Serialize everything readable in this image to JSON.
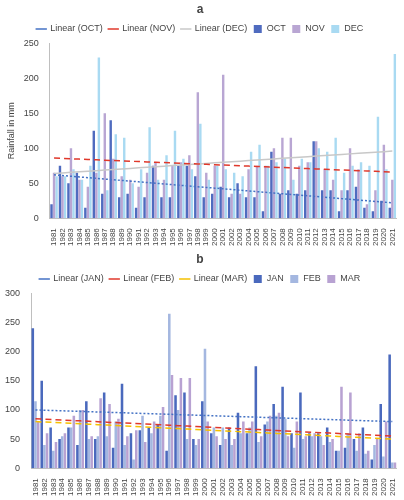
{
  "chart_data": [
    {
      "type": "bar",
      "title": "a",
      "y_label": "Rainfall in mm",
      "legend": "top",
      "grid": false,
      "categories": [
        "1981",
        "1982",
        "1983",
        "1984",
        "1985",
        "1986",
        "1987",
        "1988",
        "1989",
        "1990",
        "1991",
        "1992",
        "1993",
        "1994",
        "1995",
        "1996",
        "1997",
        "1998",
        "1999",
        "2000",
        "2001",
        "2002",
        "2003",
        "2004",
        "2005",
        "2006",
        "2007",
        "2008",
        "2009",
        "2010",
        "2011",
        "2012",
        "2013",
        "2014",
        "2015",
        "2016",
        "2017",
        "2018",
        "2019",
        "2020",
        "2021"
      ],
      "ylim": [
        0,
        250
      ],
      "yticks": [
        0,
        50,
        100,
        150,
        200,
        250
      ],
      "series": [
        {
          "name": "OCT",
          "type": "bar",
          "color": "#4f6bbf",
          "values": [
            20,
            75,
            50,
            65,
            15,
            125,
            35,
            140,
            30,
            35,
            15,
            30,
            75,
            30,
            30,
            75,
            75,
            60,
            30,
            35,
            45,
            30,
            50,
            30,
            30,
            10,
            95,
            35,
            40,
            35,
            40,
            110,
            40,
            40,
            10,
            40,
            45,
            15,
            10,
            25,
            15
          ]
        },
        {
          "name": "NOV",
          "type": "bar",
          "color": "#b9a6d3",
          "values": [
            65,
            60,
            100,
            55,
            45,
            65,
            150,
            85,
            60,
            55,
            45,
            65,
            80,
            55,
            75,
            80,
            90,
            180,
            65,
            75,
            205,
            35,
            35,
            70,
            75,
            75,
            100,
            115,
            115,
            75,
            80,
            110,
            70,
            55,
            40,
            100,
            70,
            20,
            40,
            105,
            55
          ]
        },
        {
          "name": "DEC",
          "type": "bar",
          "color": "#a9daf2",
          "values": [
            60,
            60,
            70,
            55,
            75,
            230,
            40,
            120,
            115,
            50,
            70,
            130,
            55,
            90,
            125,
            85,
            70,
            135,
            55,
            75,
            70,
            65,
            60,
            95,
            105,
            75,
            80,
            85,
            55,
            85,
            80,
            100,
            95,
            115,
            65,
            75,
            80,
            75,
            145,
            70,
            235
          ]
        },
        {
          "name": "Linear (OCT)",
          "type": "line",
          "line_style": "dotted",
          "color": "#4472c4",
          "values": [
            62,
            61,
            60,
            59,
            58,
            57,
            56,
            55,
            54,
            53,
            52,
            51,
            50,
            49,
            48,
            47,
            46,
            45,
            44,
            43,
            42,
            41,
            40,
            39,
            38,
            37,
            36,
            35,
            34,
            33,
            32,
            31,
            30,
            29,
            28,
            27,
            26,
            25,
            24,
            23,
            22
          ]
        },
        {
          "name": "Linear (NOV)",
          "type": "line",
          "line_style": "dashed",
          "color": "#e0382b",
          "values": [
            86,
            85.5,
            85,
            84.5,
            84,
            83.5,
            83,
            82.5,
            82,
            81.5,
            81,
            80.5,
            80,
            79.5,
            79,
            78.5,
            78,
            77.5,
            77,
            76.5,
            76,
            75.5,
            75,
            74.5,
            74,
            73.5,
            73,
            72.5,
            72,
            71.5,
            71,
            70.5,
            70,
            69.5,
            69,
            68.5,
            68,
            67.5,
            67,
            66.5,
            66
          ]
        },
        {
          "name": "Linear (DEC)",
          "type": "line",
          "line_style": "solid",
          "color": "#c8c8c8",
          "values": [
            64,
            64.8,
            65.6,
            66.4,
            67.2,
            68,
            68.8,
            69.6,
            70.4,
            71.2,
            72,
            72.8,
            73.6,
            74.4,
            75.2,
            76,
            76.8,
            77.6,
            78.4,
            79.2,
            80,
            80.8,
            81.6,
            82.4,
            83.2,
            84,
            84.8,
            85.6,
            86.4,
            87.2,
            88,
            88.8,
            89.6,
            90.4,
            91.2,
            92,
            92.8,
            93.6,
            94.4,
            95.2,
            96
          ]
        }
      ]
    },
    {
      "type": "bar",
      "title": "b",
      "legend": "top",
      "grid": false,
      "categories": [
        "1981",
        "1982",
        "1983",
        "1984",
        "1985",
        "1986",
        "1987",
        "1988",
        "1989",
        "1990",
        "1991",
        "1992",
        "1993",
        "1994",
        "1995",
        "1996",
        "1997",
        "1998",
        "1999",
        "2000",
        "2001",
        "2002",
        "2003",
        "2004",
        "2005",
        "2006",
        "2007",
        "2008",
        "2009",
        "2010",
        "2011",
        "2012",
        "2013",
        "2014",
        "2015",
        "2016",
        "2017",
        "2018",
        "2019",
        "2020",
        "2021"
      ],
      "ylim": [
        0,
        300
      ],
      "yticks": [
        0,
        50,
        100,
        150,
        200,
        250,
        300
      ],
      "series": [
        {
          "name": "JAN",
          "type": "bar",
          "color": "#4a69bd",
          "values": [
            240,
            150,
            70,
            50,
            70,
            40,
            115,
            50,
            130,
            35,
            145,
            60,
            65,
            70,
            75,
            30,
            125,
            130,
            50,
            115,
            60,
            40,
            70,
            95,
            60,
            175,
            75,
            110,
            140,
            60,
            130,
            60,
            60,
            70,
            30,
            35,
            50,
            70,
            15,
            110,
            195
          ]
        },
        {
          "name": "FEB",
          "type": "bar",
          "color": "#a4b7e0",
          "values": [
            115,
            40,
            30,
            55,
            70,
            100,
            50,
            55,
            55,
            80,
            40,
            15,
            90,
            60,
            90,
            265,
            100,
            50,
            40,
            205,
            70,
            70,
            40,
            60,
            70,
            45,
            80,
            90,
            85,
            35,
            50,
            55,
            55,
            45,
            30,
            60,
            30,
            25,
            40,
            20,
            10
          ]
        },
        {
          "name": "MAR",
          "type": "bar",
          "color": "#b8a2d2",
          "values": [
            80,
            60,
            45,
            60,
            90,
            100,
            55,
            120,
            110,
            85,
            55,
            65,
            45,
            80,
            105,
            160,
            155,
            155,
            50,
            80,
            55,
            50,
            50,
            80,
            80,
            55,
            90,
            95,
            55,
            80,
            55,
            60,
            40,
            50,
            140,
            130,
            60,
            30,
            50,
            80,
            10
          ]
        },
        {
          "name": "Linear (JAN)",
          "type": "line",
          "line_style": "dotted",
          "color": "#4472c4",
          "values": [
            100,
            99.5,
            99,
            98.5,
            98,
            97.5,
            97,
            96.5,
            96,
            95.5,
            95,
            94.5,
            94,
            93.5,
            93,
            92.5,
            92,
            91.5,
            91,
            90.5,
            90,
            89.5,
            89,
            88.5,
            88,
            87.5,
            87,
            86.5,
            86,
            85.5,
            85,
            84.5,
            84,
            83.5,
            83,
            82.5,
            82,
            81.5,
            81,
            80.5,
            80
          ]
        },
        {
          "name": "Linear (FEB)",
          "type": "line",
          "line_style": "dashed",
          "color": "#e0382b",
          "values": [
            85,
            84.25,
            83.5,
            82.75,
            82,
            81.25,
            80.5,
            79.75,
            79,
            78.25,
            77.5,
            76.75,
            76,
            75.25,
            74.5,
            73.75,
            73,
            72.25,
            71.5,
            70.75,
            70,
            69.25,
            68.5,
            67.75,
            67,
            66.25,
            65.5,
            64.75,
            64,
            63.25,
            62.5,
            61.75,
            61,
            60.25,
            59.5,
            58.75,
            58,
            57.25,
            56.5,
            55.75,
            55
          ]
        },
        {
          "name": "Linear (MAR)",
          "type": "line",
          "line_style": "dashed",
          "color": "#f5c000",
          "values": [
            80,
            79.25,
            78.5,
            77.75,
            77,
            76.25,
            75.5,
            74.75,
            74,
            73.25,
            72.5,
            71.75,
            71,
            70.25,
            69.5,
            68.75,
            68,
            67.25,
            66.5,
            65.75,
            65,
            64.25,
            63.5,
            62.75,
            62,
            61.25,
            60.5,
            59.75,
            59,
            58.25,
            57.5,
            56.75,
            56,
            55.25,
            54.5,
            53.75,
            53,
            52.25,
            51.5,
            50.75,
            50
          ]
        }
      ]
    }
  ]
}
